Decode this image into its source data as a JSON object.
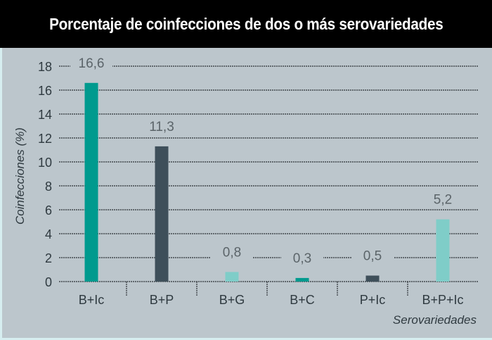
{
  "chart_data": {
    "type": "bar",
    "title": "Porcentaje de coinfecciones de dos o más serovariedades",
    "xlabel": "Serovariedades",
    "ylabel": "Coinfecciones (%)",
    "ylim": [
      0,
      18
    ],
    "yticks": [
      "0",
      "2",
      "4",
      "6",
      "8",
      "10",
      "12",
      "14",
      "16",
      "18"
    ],
    "grid": true,
    "categories": [
      "B+Ic",
      "B+P",
      "B+G",
      "B+C",
      "P+Ic",
      "B+P+Ic"
    ],
    "values": [
      16.6,
      11.3,
      0.8,
      0.3,
      0.5,
      5.2
    ],
    "value_labels": [
      "16,6",
      "11,3",
      "0,8",
      "0,3",
      "0,5",
      "5,2"
    ],
    "colors": [
      "#009a8e",
      "#3e4f5a",
      "#7fcdc8",
      "#009a8e",
      "#3e4f5a",
      "#7fcdc8"
    ]
  }
}
